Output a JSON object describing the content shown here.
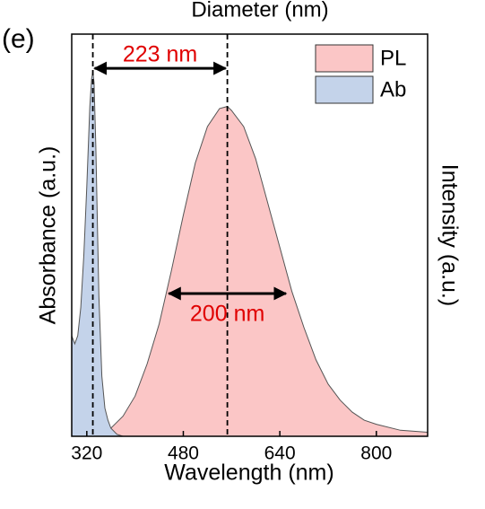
{
  "chart_data": {
    "type": "area",
    "title": "Diameter (nm)",
    "panel_label": "(e)",
    "x_label": "Wavelength (nm)",
    "y_label": "Absorbance (a.u.)",
    "y2_label": "Intensity (a.u.)",
    "xlim": [
      295,
      885
    ],
    "ylim": [
      0,
      1
    ],
    "xticks": [
      320,
      480,
      640,
      800
    ],
    "legend": "upper right",
    "series": [
      {
        "name": "PL",
        "color": "#fbc6c6",
        "x": [
          340,
          360,
          380,
          400,
          420,
          440,
          460,
          480,
          500,
          520,
          540,
          553,
          560,
          580,
          600,
          620,
          640,
          660,
          680,
          700,
          720,
          740,
          760,
          780,
          800,
          840,
          885
        ],
        "values": [
          0,
          0.02,
          0.05,
          0.1,
          0.18,
          0.28,
          0.41,
          0.55,
          0.68,
          0.77,
          0.815,
          0.82,
          0.81,
          0.77,
          0.69,
          0.58,
          0.47,
          0.36,
          0.27,
          0.19,
          0.13,
          0.09,
          0.06,
          0.04,
          0.03,
          0.015,
          0.01
        ]
      },
      {
        "name": "Ab",
        "color": "#c4d3ea",
        "x": [
          295,
          300,
          305,
          310,
          315,
          320,
          325,
          328,
          330,
          332,
          335,
          338,
          340,
          345,
          350,
          355,
          360,
          370,
          380
        ],
        "values": [
          0.25,
          0.23,
          0.25,
          0.32,
          0.45,
          0.62,
          0.82,
          0.89,
          0.906,
          0.88,
          0.72,
          0.5,
          0.35,
          0.15,
          0.07,
          0.04,
          0.02,
          0.005,
          0
        ]
      }
    ],
    "vlines": [
      330,
      553
    ],
    "annotations": [
      {
        "text": "223 nm",
        "x": [
          330,
          553
        ],
        "y": 0.915
      },
      {
        "text": "200 nm",
        "x": [
          453,
          653
        ],
        "y": 0.355
      }
    ]
  }
}
